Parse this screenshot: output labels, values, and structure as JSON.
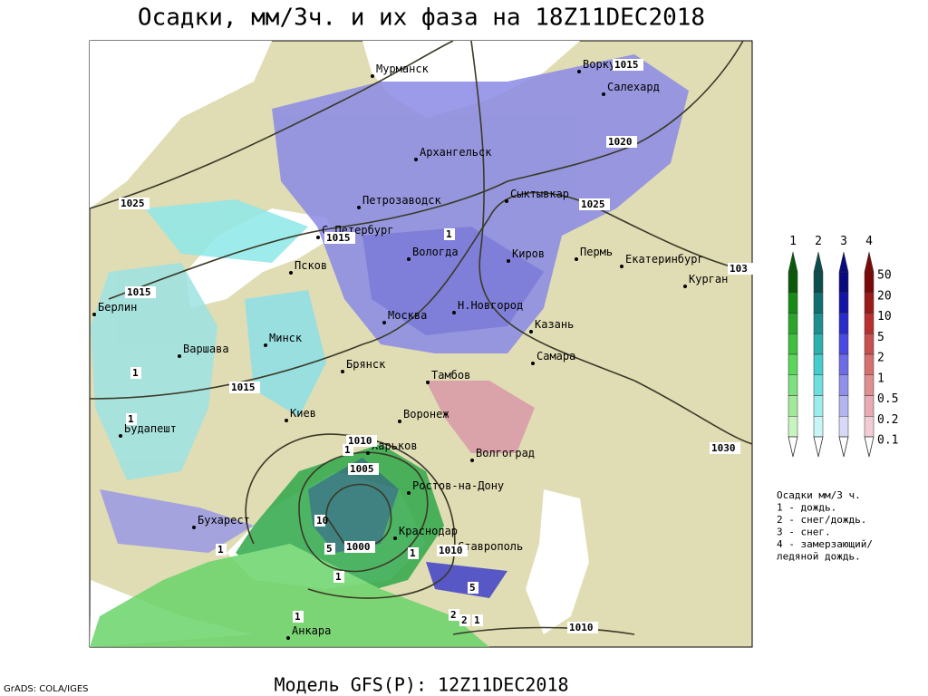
{
  "header": {
    "title": "Осадки, мм/3ч. и их фаза на 18Z11DEC2018"
  },
  "map": {
    "cities": [
      "Мурманск",
      "Воркута",
      "Салехард",
      "Архангельск",
      "Петрозаводск",
      "Сыктывкар",
      "С.Петербург",
      "Вологда",
      "Киров",
      "Пермь",
      "Екатеринбург",
      "Курган",
      "Псков",
      "Берлин",
      "Москва",
      "Н.Новгород",
      "Казань",
      "Варшава",
      "Минск",
      "Брянск",
      "Самара",
      "Тамбов",
      "Будапешт",
      "Киев",
      "Воронеж",
      "Харьков",
      "Волгоград",
      "Ростов-на-Дону",
      "Бухарест",
      "Краснодар",
      "Ставрополь",
      "Анкара"
    ],
    "isobar_labels": [
      "1025",
      "1015",
      "1015",
      "1020",
      "1025",
      "1030",
      "1010",
      "1005",
      "1000",
      "1010",
      "1015",
      "1015",
      "103",
      "1010"
    ],
    "phase_labels": [
      "1",
      "1",
      "1",
      "1",
      "10",
      "5",
      "1",
      "1",
      "5",
      "2",
      "2",
      "1",
      "1",
      "1"
    ]
  },
  "legend": {
    "phases": [
      "1",
      "2",
      "3",
      "4"
    ],
    "levels": [
      "50",
      "20",
      "10",
      "5",
      "2",
      "1",
      "0.5",
      "0.2",
      "0.1"
    ],
    "notes": [
      "Осадки мм/3 ч.",
      "1 - дождь.",
      "2 - снег/дождь.",
      "3 - снег.",
      "4 - замерзающий/",
      "ледяной дождь."
    ]
  },
  "footer": {
    "model": "Модель GFS(P): 12Z11DEC2018",
    "credit": "GrADS: COLA/IGES"
  }
}
